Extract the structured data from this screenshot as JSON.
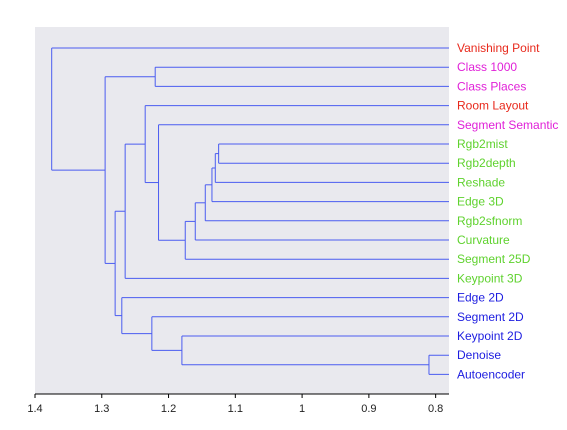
{
  "colors": {
    "red": "#e8291c",
    "magenta": "#e020d8",
    "green": "#5fd22e",
    "blue": "#1c1ce0",
    "branch": "#4a5cf0",
    "plot_bg": "#e9e9ee"
  },
  "leaves": [
    {
      "label": "Vanishing Point",
      "color": "red"
    },
    {
      "label": "Class 1000",
      "color": "magenta"
    },
    {
      "label": "Class Places",
      "color": "magenta"
    },
    {
      "label": "Room Layout",
      "color": "red"
    },
    {
      "label": "Segment Semantic",
      "color": "magenta"
    },
    {
      "label": "Rgb2mist",
      "color": "green"
    },
    {
      "label": "Rgb2depth",
      "color": "green"
    },
    {
      "label": "Reshade",
      "color": "green"
    },
    {
      "label": "Edge 3D",
      "color": "green"
    },
    {
      "label": "Rgb2sfnorm",
      "color": "green"
    },
    {
      "label": "Curvature",
      "color": "green"
    },
    {
      "label": "Segment 25D",
      "color": "green"
    },
    {
      "label": "Keypoint 3D",
      "color": "green"
    },
    {
      "label": "Edge 2D",
      "color": "blue"
    },
    {
      "label": "Segment 2D",
      "color": "blue"
    },
    {
      "label": "Keypoint 2D",
      "color": "blue"
    },
    {
      "label": "Denoise",
      "color": "blue"
    },
    {
      "label": "Autoencoder",
      "color": "blue"
    }
  ],
  "x_axis": {
    "min": 0.78,
    "max": 1.4,
    "ticks": [
      {
        "value": 1.4,
        "label": "1.4"
      },
      {
        "value": 1.3,
        "label": "1.3"
      },
      {
        "value": 1.2,
        "label": "1.2"
      },
      {
        "value": 1.1,
        "label": "1.1"
      },
      {
        "value": 1.0,
        "label": "1"
      },
      {
        "value": 0.9,
        "label": "0.9"
      },
      {
        "value": 0.8,
        "label": "0.8"
      }
    ]
  },
  "merges": [
    {
      "a": "L16",
      "b": "L17",
      "h": 0.81
    },
    {
      "a": "L5",
      "b": "L6",
      "h": 1.125
    },
    {
      "a": "M2",
      "b": "L7",
      "h": 1.13
    },
    {
      "a": "M3",
      "b": "L8",
      "h": 1.135
    },
    {
      "a": "M4",
      "b": "L9",
      "h": 1.145
    },
    {
      "a": "M5",
      "b": "L10",
      "h": 1.16
    },
    {
      "a": "M6",
      "b": "L11",
      "h": 1.175
    },
    {
      "a": "L1",
      "b": "L2",
      "h": 1.22
    },
    {
      "a": "L4",
      "b": "M7",
      "h": 1.215
    },
    {
      "a": "L3",
      "b": "M9",
      "h": 1.235
    },
    {
      "a": "L15",
      "b": "M1",
      "h": 1.18
    },
    {
      "a": "L14",
      "b": "M11",
      "h": 1.225
    },
    {
      "a": "M10",
      "b": "L12",
      "h": 1.265
    },
    {
      "a": "L13",
      "b": "M12",
      "h": 1.27
    },
    {
      "a": "M13",
      "b": "M14",
      "h": 1.28
    },
    {
      "a": "M8",
      "b": "M15",
      "h": 1.295
    },
    {
      "a": "L0",
      "b": "M16",
      "h": 1.375
    }
  ]
}
